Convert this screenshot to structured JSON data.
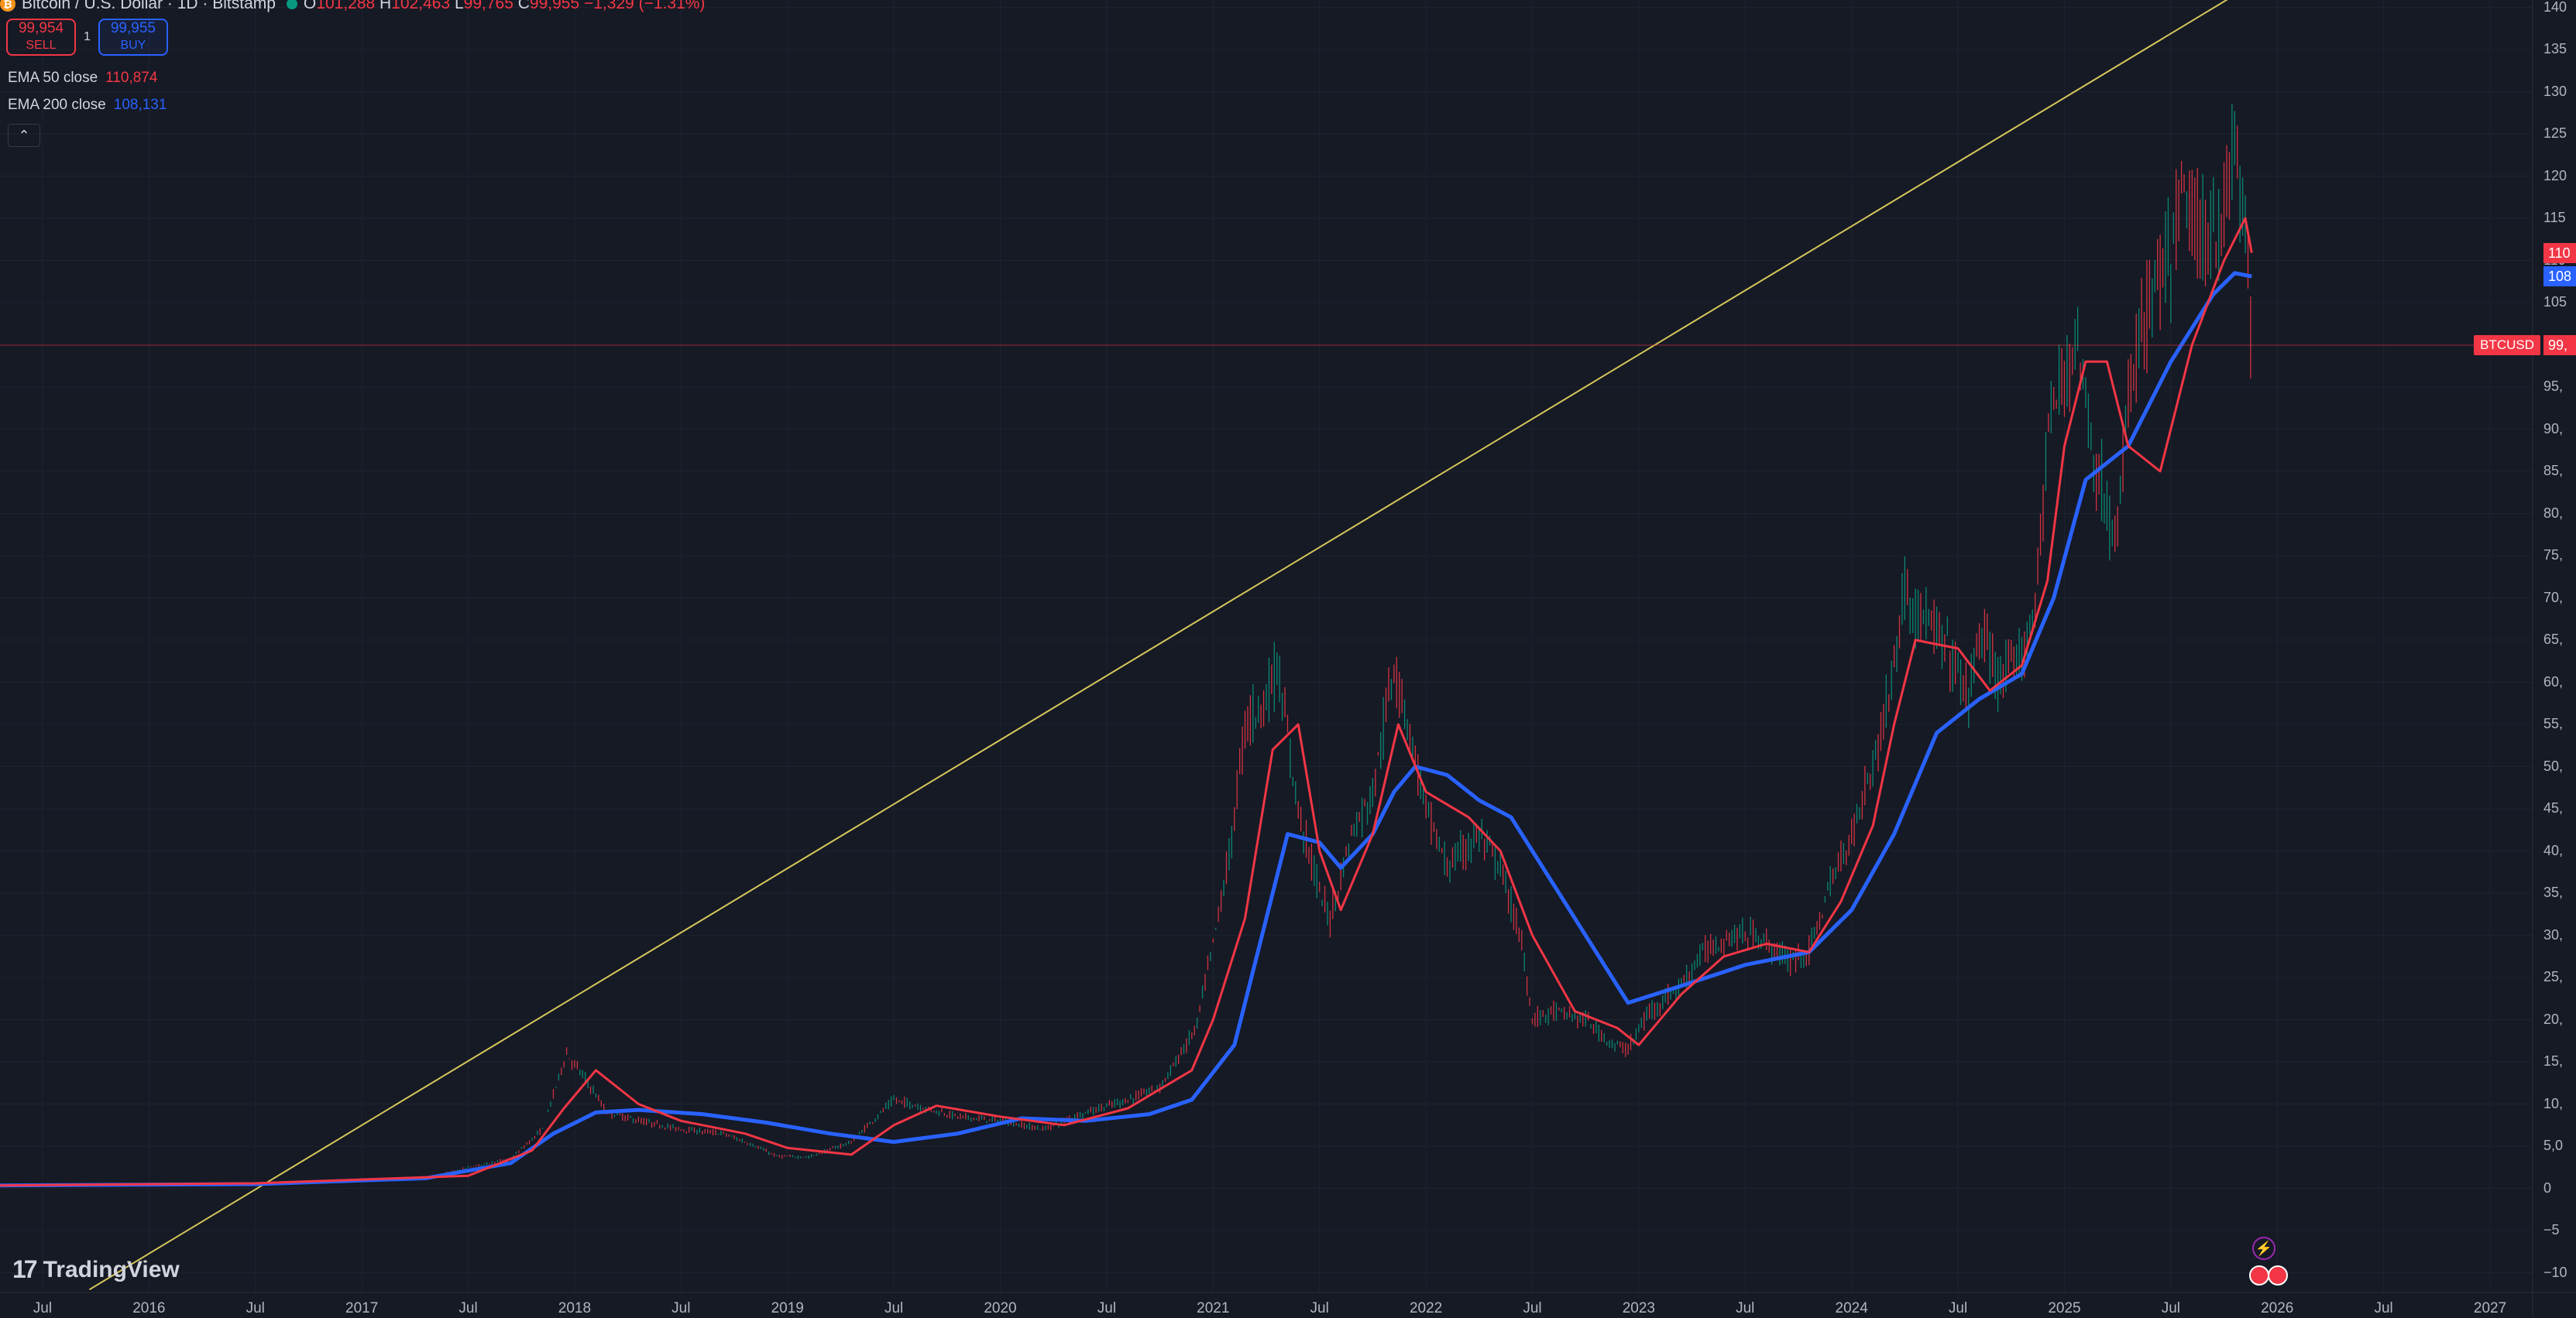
{
  "header": {
    "coin_icon": "bitcoin-icon",
    "title": "Bitcoin / U.S. Dollar · 1D · Bitstamp",
    "o_label": "O",
    "o_value": "101,288",
    "h_label": "H",
    "h_value": "102,463",
    "l_label": "L",
    "l_value": "99,765",
    "c_label": "C",
    "c_value": "99,955",
    "change": "−1,329 (−1.31%)"
  },
  "trade": {
    "sell_price": "99,954",
    "sell_label": "SELL",
    "spread": "1",
    "buy_price": "99,955",
    "buy_label": "BUY"
  },
  "indicators": [
    {
      "label": "EMA 50 close",
      "value": "110,874",
      "color": "#f23645"
    },
    {
      "label": "EMA 200 close",
      "value": "108,131",
      "color": "#2962ff"
    }
  ],
  "collapse_icon": "chevron-up-icon",
  "price_axis": {
    "ticks": [
      "−10",
      "−5",
      "0",
      "5,0",
      "10,",
      "15,",
      "20,",
      "25,",
      "30,",
      "35,",
      "40,",
      "45,",
      "50,",
      "55,",
      "60,",
      "65,",
      "70,",
      "75,",
      "80,",
      "85,",
      "90,",
      "95,",
      "105",
      "110",
      "115",
      "120",
      "125",
      "130",
      "135",
      "140"
    ],
    "tick_values": [
      -10000,
      -5000,
      0,
      5000,
      10000,
      15000,
      20000,
      25000,
      30000,
      35000,
      40000,
      45000,
      50000,
      55000,
      60000,
      65000,
      70000,
      75000,
      80000,
      85000,
      90000,
      95000,
      105000,
      110000,
      115000,
      120000,
      125000,
      130000,
      135000,
      140000
    ],
    "ema50_tag": "110",
    "ema200_tag": "108",
    "price_tag": "99,",
    "symbol_tag": "BTCUSD"
  },
  "time_axis": {
    "labels": [
      "Jul",
      "2016",
      "Jul",
      "2017",
      "Jul",
      "2018",
      "Jul",
      "2019",
      "Jul",
      "2020",
      "Jul",
      "2021",
      "Jul",
      "2022",
      "Jul",
      "2023",
      "Jul",
      "2024",
      "Jul",
      "2025",
      "Jul",
      "2026",
      "Jul",
      "2027"
    ],
    "dates": [
      2015.5,
      2016.0,
      2016.5,
      2017.0,
      2017.5,
      2018.0,
      2018.5,
      2019.0,
      2019.5,
      2020.0,
      2020.5,
      2021.0,
      2021.5,
      2022.0,
      2022.5,
      2023.0,
      2023.5,
      2024.0,
      2024.5,
      2025.0,
      2025.5,
      2026.0,
      2026.5,
      2027.0
    ]
  },
  "brand": {
    "icon": "tradingview-logo-icon",
    "mark": "17",
    "name": "TradingView"
  },
  "colors": {
    "background": "#161a25",
    "grid": "#1f2330",
    "up": "#089981",
    "down": "#f23645",
    "ema50": "#f23645",
    "ema200": "#2962ff",
    "trendline": "#d6c75a",
    "price_line": "#f23645"
  },
  "chart_data": {
    "type": "line",
    "x_range": [
      2015.3,
      2027.2
    ],
    "ylim": [
      -11000,
      141000
    ],
    "last_close": 99955,
    "trendline": {
      "x": [
        2015.72,
        2026.0
      ],
      "y": [
        -12000,
        144500
      ]
    },
    "series": [
      {
        "name": "Bitcoin / U.S. Dollar · 1D · Bitstamp",
        "color": "#089981",
        "x": [
          2015.3,
          2015.8,
          2016.3,
          2016.8,
          2017.0,
          2017.3,
          2017.5,
          2017.7,
          2017.85,
          2017.96,
          2018.05,
          2018.15,
          2018.3,
          2018.5,
          2018.7,
          2018.85,
          2018.95,
          2019.1,
          2019.3,
          2019.5,
          2019.65,
          2019.8,
          2020.0,
          2020.2,
          2020.4,
          2020.6,
          2020.75,
          2020.85,
          2020.92,
          2021.0,
          2021.08,
          2021.15,
          2021.25,
          2021.3,
          2021.4,
          2021.5,
          2021.55,
          2021.65,
          2021.75,
          2021.85,
          2021.9,
          2022.0,
          2022.1,
          2022.25,
          2022.35,
          2022.45,
          2022.5,
          2022.6,
          2022.75,
          2022.88,
          2022.95,
          2023.05,
          2023.2,
          2023.3,
          2023.45,
          2023.55,
          2023.7,
          2023.8,
          2023.9,
          2024.0,
          2024.12,
          2024.2,
          2024.25,
          2024.35,
          2024.45,
          2024.55,
          2024.6,
          2024.7,
          2024.8,
          2024.87,
          2024.92,
          2025.0,
          2025.05,
          2025.15,
          2025.25,
          2025.3,
          2025.4,
          2025.5,
          2025.55,
          2025.65,
          2025.75,
          2025.8,
          2025.86,
          2025.88
        ],
        "y": [
          250,
          400,
          600,
          700,
          950,
          1100,
          2500,
          3500,
          7000,
          16000,
          13000,
          9000,
          8000,
          7000,
          6500,
          5000,
          3800,
          3700,
          5500,
          10500,
          9500,
          8500,
          8000,
          7000,
          9000,
          10500,
          12000,
          16000,
          19000,
          29000,
          40000,
          55000,
          58000,
          62000,
          45000,
          35000,
          32000,
          42000,
          47000,
          62000,
          57000,
          45000,
          38000,
          42000,
          38000,
          29000,
          20000,
          21000,
          20000,
          17000,
          16500,
          21000,
          24000,
          28000,
          30000,
          30000,
          27000,
          28000,
          36000,
          42000,
          52000,
          62000,
          71000,
          67000,
          64000,
          58000,
          66000,
          60000,
          63000,
          70000,
          90000,
          96000,
          102000,
          85000,
          76000,
          95000,
          105000,
          110000,
          118000,
          112000,
          115000,
          124000,
          111000,
          100000
        ]
      },
      {
        "name": "EMA 50 close",
        "color": "#f23645",
        "x": [
          2015.3,
          2016.5,
          2017.5,
          2017.8,
          2017.95,
          2018.1,
          2018.3,
          2018.5,
          2018.8,
          2019.0,
          2019.3,
          2019.5,
          2019.7,
          2020.0,
          2020.3,
          2020.6,
          2020.9,
          2021.0,
          2021.15,
          2021.28,
          2021.4,
          2021.5,
          2021.6,
          2021.75,
          2021.87,
          2022.0,
          2022.2,
          2022.35,
          2022.5,
          2022.7,
          2022.9,
          2023.0,
          2023.2,
          2023.4,
          2023.6,
          2023.8,
          2023.95,
          2024.1,
          2024.2,
          2024.3,
          2024.5,
          2024.65,
          2024.8,
          2024.92,
          2025.0,
          2025.1,
          2025.2,
          2025.3,
          2025.45,
          2025.6,
          2025.75,
          2025.85,
          2025.88
        ],
        "y": [
          350,
          600,
          1500,
          4500,
          9500,
          14000,
          10000,
          8000,
          6500,
          4800,
          4000,
          7500,
          9800,
          8500,
          7500,
          9500,
          14000,
          20000,
          32000,
          52000,
          55000,
          40000,
          33000,
          42000,
          55000,
          47000,
          44000,
          40000,
          30000,
          21000,
          19000,
          17000,
          23000,
          27500,
          29000,
          28000,
          34000,
          43000,
          55000,
          65000,
          64000,
          59000,
          62000,
          72000,
          88000,
          98000,
          98000,
          88000,
          85000,
          100000,
          110000,
          115000,
          110900
        ]
      },
      {
        "name": "EMA 200 close",
        "color": "#2962ff",
        "x": [
          2015.3,
          2016.5,
          2017.3,
          2017.7,
          2017.9,
          2018.1,
          2018.3,
          2018.6,
          2018.9,
          2019.2,
          2019.5,
          2019.8,
          2020.1,
          2020.4,
          2020.7,
          2020.9,
          2021.1,
          2021.25,
          2021.35,
          2021.5,
          2021.6,
          2021.75,
          2021.85,
          2021.95,
          2022.1,
          2022.25,
          2022.4,
          2022.6,
          2022.8,
          2022.95,
          2023.2,
          2023.5,
          2023.8,
          2024.0,
          2024.2,
          2024.4,
          2024.6,
          2024.8,
          2024.95,
          2025.1,
          2025.3,
          2025.5,
          2025.7,
          2025.8,
          2025.88
        ],
        "y": [
          350,
          500,
          1200,
          3000,
          6500,
          9000,
          9300,
          8800,
          7800,
          6500,
          5500,
          6500,
          8300,
          8000,
          8800,
          10500,
          17000,
          32000,
          42000,
          41000,
          38000,
          42000,
          47000,
          50000,
          49000,
          46000,
          44000,
          36000,
          28000,
          22000,
          24000,
          26500,
          28000,
          33000,
          42000,
          54000,
          58000,
          61000,
          70000,
          84000,
          88000,
          98000,
          106000,
          108500,
          108100
        ]
      }
    ]
  }
}
